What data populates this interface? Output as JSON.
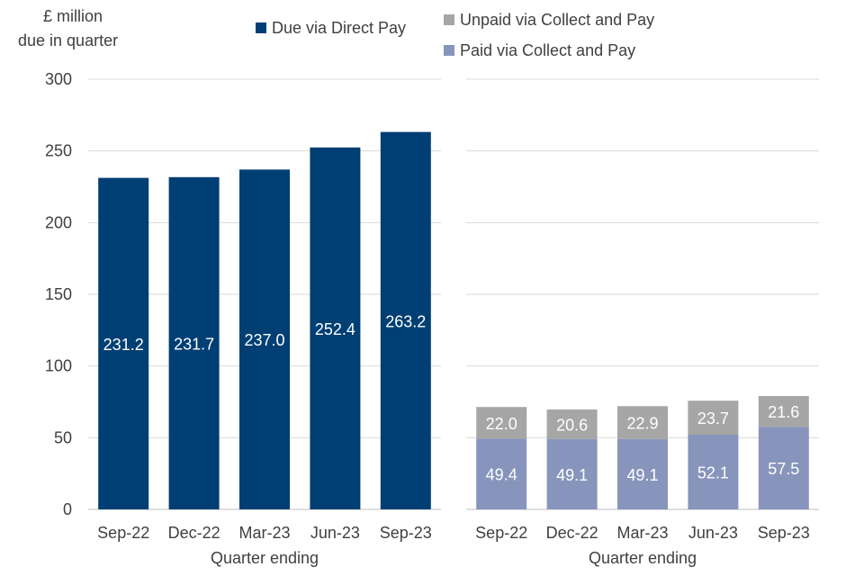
{
  "chart_data": [
    {
      "type": "bar",
      "panel": "left",
      "ylabel": "£ million due in quarter",
      "ylabel_lines": [
        "£ million",
        "due in quarter"
      ],
      "xlabel": "Quarter ending",
      "ylim": [
        0,
        300
      ],
      "yticks": [
        "0",
        "50",
        "100",
        "150",
        "200",
        "250",
        "300"
      ],
      "grid": true,
      "categories": [
        "Sep-22",
        "Dec-22",
        "Mar-23",
        "Jun-23",
        "Sep-23"
      ],
      "series": [
        {
          "name": "Due via Direct Pay",
          "color": "#003F73",
          "values": [
            231.2,
            231.7,
            237.0,
            252.4,
            263.2
          ],
          "labels": [
            "231.2",
            "231.7",
            "237.0",
            "252.4",
            "263.2"
          ]
        }
      ]
    },
    {
      "type": "stacked-bar",
      "panel": "right",
      "xlabel": "Quarter ending",
      "ylim": [
        0,
        300
      ],
      "grid": true,
      "categories": [
        "Sep-22",
        "Dec-22",
        "Mar-23",
        "Jun-23",
        "Sep-23"
      ],
      "series": [
        {
          "name": "Paid via Collect and Pay",
          "color": "#8795BC",
          "values": [
            49.4,
            49.1,
            49.1,
            52.1,
            57.5
          ],
          "labels": [
            "49.4",
            "49.1",
            "49.1",
            "52.1",
            "57.5"
          ]
        },
        {
          "name": "Unpaid via Collect and Pay",
          "color": "#A6A6A6",
          "values": [
            22.0,
            20.6,
            22.9,
            23.7,
            21.6
          ],
          "labels": [
            "22.0",
            "20.6",
            "22.9",
            "23.7",
            "21.6"
          ]
        }
      ]
    }
  ],
  "legend": [
    {
      "label": "Due via Direct Pay",
      "color": "#003F73"
    },
    {
      "label": "Unpaid via Collect and Pay",
      "color": "#A6A6A6"
    },
    {
      "label": "Paid via Collect and Pay",
      "color": "#8795BC"
    }
  ]
}
